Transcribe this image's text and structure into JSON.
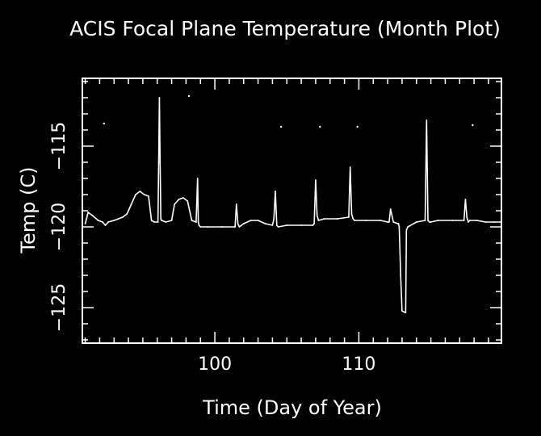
{
  "chart_data": {
    "type": "line",
    "title": "ACIS Focal Plane Temperature (Month Plot)",
    "xlabel": "Time (Day of Year)",
    "ylabel": "Temp (C)",
    "xlim": [
      90.8,
      119.9
    ],
    "ylim": [
      -127.2,
      -110.8
    ],
    "x_ticks": [
      100,
      110
    ],
    "y_ticks": [
      -115,
      -120,
      -125
    ],
    "grid": false,
    "legend": "none",
    "colors": {
      "background": "#000000",
      "foreground": "#ffffff"
    },
    "series": [
      {
        "x": [
          91.0,
          91.2,
          91.5,
          91.9,
          92.2,
          92.4,
          92.6,
          93.0,
          93.3,
          93.6,
          93.9,
          94.2,
          94.5,
          94.8,
          95.1,
          95.4,
          95.6,
          95.8,
          96.05,
          96.1,
          96.15,
          96.2,
          96.25,
          96.3,
          96.6,
          97.0,
          97.2,
          97.5,
          97.8,
          98.1,
          98.4,
          98.7,
          98.8,
          98.85,
          98.9,
          99.0,
          99.5,
          100.5,
          101.4,
          101.5,
          101.6,
          101.7,
          102.0,
          102.5,
          103.0,
          103.5,
          104.0,
          104.1,
          104.2,
          104.3,
          104.4,
          105.0,
          106.0,
          106.8,
          106.9,
          107.0,
          107.1,
          107.2,
          107.6,
          108.5,
          109.3,
          109.4,
          109.5,
          109.6,
          109.7,
          110.5,
          111.5,
          112.0,
          112.1,
          112.2,
          112.4,
          112.7,
          112.75,
          112.8,
          112.9,
          113.0,
          113.2,
          113.25,
          113.3,
          113.4,
          114.0,
          114.6,
          114.7,
          114.8,
          114.9,
          115.0,
          115.5,
          116.5,
          117.3,
          117.4,
          117.5,
          117.6,
          117.7,
          118.2,
          118.8,
          119.4,
          119.8
        ],
        "y": [
          -119.8,
          -119.1,
          -119.3,
          -119.6,
          -119.7,
          -119.9,
          -119.7,
          -119.6,
          -119.5,
          -119.4,
          -119.2,
          -118.6,
          -118.0,
          -117.8,
          -118.0,
          -118.1,
          -119.6,
          -119.7,
          -119.7,
          -116.0,
          -112.0,
          -116.0,
          -119.5,
          -119.6,
          -119.7,
          -119.6,
          -118.6,
          -118.3,
          -118.2,
          -118.4,
          -119.6,
          -119.7,
          -117.0,
          -119.7,
          -119.9,
          -120.0,
          -120.0,
          -120.0,
          -120.0,
          -118.6,
          -119.8,
          -120.0,
          -119.8,
          -119.6,
          -119.6,
          -119.8,
          -119.9,
          -119.5,
          -117.8,
          -119.9,
          -120.0,
          -119.9,
          -119.9,
          -119.9,
          -119.8,
          -117.1,
          -119.3,
          -119.6,
          -119.5,
          -119.5,
          -119.4,
          -116.3,
          -119.2,
          -119.5,
          -119.6,
          -119.6,
          -119.6,
          -119.7,
          -119.7,
          -118.9,
          -119.7,
          -119.8,
          -119.8,
          -120.0,
          -123.0,
          -125.2,
          -125.3,
          -125.3,
          -120.2,
          -120.0,
          -119.7,
          -119.6,
          -113.4,
          -119.6,
          -119.7,
          -119.7,
          -119.6,
          -119.6,
          -119.6,
          -118.3,
          -119.4,
          -119.7,
          -119.6,
          -119.6,
          -119.7,
          -119.7,
          -119.7
        ]
      },
      {
        "x": [
          92.3,
          98.2,
          104.6,
          107.3,
          109.9,
          117.9
        ],
        "y": [
          -113.6,
          -111.9,
          -113.8,
          -113.8,
          -113.8,
          -113.7
        ]
      }
    ]
  }
}
